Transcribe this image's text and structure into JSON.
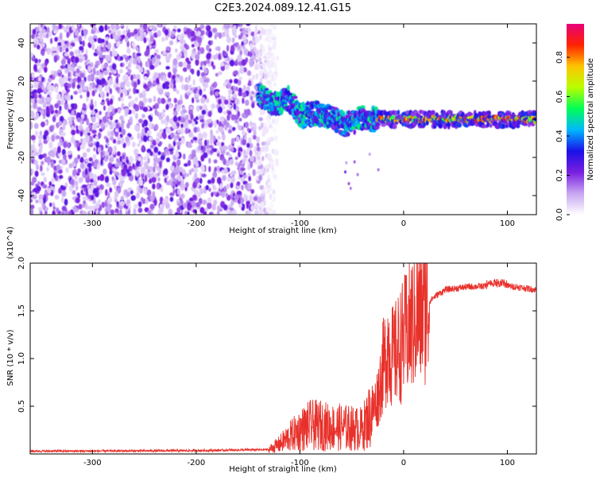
{
  "title": "C2E3.2024.089.12.41.G15",
  "chart_data": [
    {
      "type": "heatmap",
      "xlabel": "Height of straight line (km)",
      "ylabel": "Frequency (Hz)",
      "xlim": [
        -360,
        128
      ],
      "ylim": [
        -50,
        50
      ],
      "xticks": [
        -300,
        -200,
        -100,
        0,
        100
      ],
      "yticks": [
        -40,
        -20,
        0,
        20,
        40
      ],
      "colorbar": {
        "label": "Normalized spectral amplitude",
        "range": [
          0,
          0.97
        ],
        "ticks": [
          0.0,
          0.2,
          0.4,
          0.6,
          0.8
        ],
        "colormap": [
          "#ffffff",
          "#c7a6f2",
          "#7a1fe0",
          "#1a10e8",
          "#00b7ff",
          "#00ff55",
          "#b8ff00",
          "#ffc400",
          "#ff2200",
          "#e8007a"
        ]
      },
      "features": [
        {
          "name": "noise",
          "x_range": [
            -360,
            -130
          ],
          "freq_range": [
            -50,
            50
          ]
        },
        {
          "name": "signal_track",
          "x": [
            -138,
            -125,
            -110,
            -100,
            -85,
            -70,
            -55,
            -40,
            -30,
            -20,
            0,
            128
          ],
          "freq": [
            12,
            8,
            11,
            2,
            3,
            1,
            -3,
            1,
            0,
            0,
            0,
            0
          ]
        }
      ]
    },
    {
      "type": "line",
      "xlabel": "Height of straight line (km)",
      "ylabel": "SNR (10 * v/v)",
      "yexponent": "(x10^4)",
      "xlim": [
        -360,
        128
      ],
      "ylim": [
        0,
        20000
      ],
      "xticks": [
        -300,
        -200,
        -100,
        0,
        100
      ],
      "yticks": [
        5000,
        10000,
        15000,
        20000
      ],
      "ytick_labels": [
        "0.5",
        "1.0",
        "1.5",
        "2.0"
      ],
      "color": "#e8302a",
      "series": [
        {
          "x": [
            -360,
            -300,
            -200,
            -130,
            -120,
            -110,
            -100,
            -90,
            -80,
            -70,
            -60,
            -50,
            -40,
            -30,
            -25,
            -20,
            -15,
            -10,
            -5,
            0,
            10,
            20,
            30,
            40,
            60,
            80,
            90,
            100,
            110,
            128
          ],
          "values": [
            300,
            300,
            350,
            450,
            1000,
            1800,
            2500,
            3000,
            3000,
            2800,
            2800,
            2700,
            2600,
            4500,
            6000,
            9000,
            11500,
            10000,
            11000,
            12000,
            14000,
            15500,
            16500,
            17200,
            17500,
            17600,
            17800,
            17600,
            17500,
            17200
          ]
        }
      ]
    }
  ]
}
